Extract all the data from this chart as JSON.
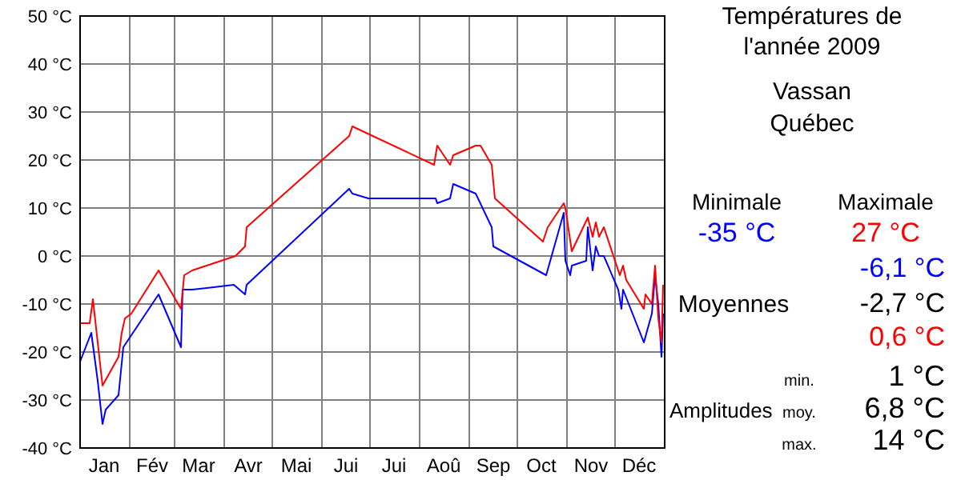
{
  "chart_data": {
    "type": "line",
    "title": "Températures de\nl'année 2009",
    "subtitle": "Vassan\nQuébec",
    "xlim": [
      "2009-01-01",
      "2010-01-01"
    ],
    "xticks": [
      {
        "value": "2009-01-01",
        "label": null
      },
      {
        "value": "2009-01-16",
        "label": "Jan"
      },
      {
        "value": "2009-02-01",
        "label": null
      },
      {
        "value": "2009-02-15",
        "label": "Fév"
      },
      {
        "value": "2009-03-01",
        "label": null
      },
      {
        "value": "2009-03-16",
        "label": "Mar"
      },
      {
        "value": "2009-04-01",
        "label": null
      },
      {
        "value": "2009-04-16",
        "label": "Avr"
      },
      {
        "value": "2009-05-01",
        "label": null
      },
      {
        "value": "2009-05-16",
        "label": "Mai"
      },
      {
        "value": "2009-06-01",
        "label": null
      },
      {
        "value": "2009-06-16",
        "label": "Jui"
      },
      {
        "value": "2009-07-01",
        "label": null
      },
      {
        "value": "2009-07-16",
        "label": "Jui"
      },
      {
        "value": "2009-08-01",
        "label": null
      },
      {
        "value": "2009-08-16",
        "label": "Aoû"
      },
      {
        "value": "2009-09-01",
        "label": null
      },
      {
        "value": "2009-09-16",
        "label": "Sep"
      },
      {
        "value": "2009-10-01",
        "label": null
      },
      {
        "value": "2009-10-16",
        "label": "Oct"
      },
      {
        "value": "2009-11-01",
        "label": null
      },
      {
        "value": "2009-11-16",
        "label": "Nov"
      },
      {
        "value": "2009-12-01",
        "label": null
      },
      {
        "value": "2009-12-16",
        "label": "Déc"
      },
      {
        "value": "2010-01-01",
        "label": null
      }
    ],
    "ylim": [
      -40,
      50
    ],
    "yticks": [
      {
        "value": -40,
        "label": "-40 °C"
      },
      {
        "value": -30,
        "label": "-30 °C"
      },
      {
        "value": -20,
        "label": "-20 °C"
      },
      {
        "value": -10,
        "label": "-10 °C"
      },
      {
        "value": 0,
        "label": "0 °C"
      },
      {
        "value": 10,
        "label": "10 °C"
      },
      {
        "value": 20,
        "label": "20 °C"
      },
      {
        "value": 30,
        "label": "30 °C"
      },
      {
        "value": 40,
        "label": "40 °C"
      },
      {
        "value": 50,
        "label": "50 °C"
      }
    ],
    "grid": true,
    "series": [
      {
        "color": "#0000ff",
        "x": [
          "2009-01-01",
          "2009-01-08",
          "2009-01-12",
          "2009-01-15",
          "2009-01-17",
          "2009-01-25",
          "2009-01-28",
          "2009-02-19",
          "2009-03-05",
          "2009-03-06",
          "2009-03-12",
          "2009-04-07",
          "2009-04-14",
          "2009-04-15",
          "2009-06-18",
          "2009-06-20",
          "2009-06-30",
          "2009-07-15",
          "2009-08-11",
          "2009-08-12",
          "2009-08-20",
          "2009-08-22",
          "2009-09-05",
          "2009-09-15",
          "2009-09-16",
          "2009-10-19",
          "2009-10-30",
          "2009-10-31",
          "2009-11-03",
          "2009-11-04",
          "2009-11-13",
          "2009-11-14",
          "2009-11-17",
          "2009-11-19",
          "2009-11-21",
          "2009-11-24",
          "2009-12-03",
          "2009-12-05",
          "2009-12-06",
          "2009-12-19",
          "2009-12-24",
          "2009-12-26",
          "2009-12-28",
          "2009-12-30",
          "2009-12-31"
        ],
        "values": [
          -22,
          -16,
          -26,
          -35,
          -32,
          -29,
          -19,
          -8,
          -19,
          -7,
          -7,
          -6,
          -8,
          -6,
          14,
          13,
          12,
          12,
          12,
          11,
          12,
          15,
          13,
          6,
          2,
          -4,
          9,
          -1,
          -4,
          -2,
          -1,
          6,
          -3,
          2,
          0,
          0,
          -7,
          -11,
          -7,
          -18,
          -12,
          -4,
          -10,
          -21,
          -12
        ]
      },
      {
        "color": "#ff0000",
        "x": [
          "2009-01-01",
          "2009-01-07",
          "2009-01-09",
          "2009-01-10",
          "2009-01-15",
          "2009-01-25",
          "2009-01-27",
          "2009-01-29",
          "2009-02-02",
          "2009-02-19",
          "2009-03-05",
          "2009-03-07",
          "2009-03-12",
          "2009-04-08",
          "2009-04-14",
          "2009-04-15",
          "2009-06-18",
          "2009-06-20",
          "2009-08-10",
          "2009-08-12",
          "2009-08-20",
          "2009-08-22",
          "2009-09-05",
          "2009-09-08",
          "2009-09-15",
          "2009-09-17",
          "2009-10-17",
          "2009-10-20",
          "2009-10-30",
          "2009-10-31",
          "2009-11-04",
          "2009-11-14",
          "2009-11-17",
          "2009-11-19",
          "2009-11-21",
          "2009-11-24",
          "2009-11-30",
          "2009-12-04",
          "2009-12-06",
          "2009-12-08",
          "2009-12-19",
          "2009-12-20",
          "2009-12-24",
          "2009-12-26",
          "2009-12-28",
          "2009-12-30",
          "2009-12-31"
        ],
        "values": [
          -14,
          -14,
          -9,
          -12,
          -27,
          -21,
          -16,
          -13,
          -12,
          -3,
          -11,
          -4,
          -3,
          0,
          2,
          6,
          25,
          27,
          19,
          23,
          19,
          21,
          23,
          23,
          19,
          12,
          3,
          6,
          11,
          10,
          1,
          8,
          4,
          7,
          4,
          6,
          0,
          -4,
          -2,
          -5,
          -11,
          -8,
          -10,
          -2,
          -13,
          -18,
          -6
        ]
      }
    ],
    "annotations": [
      "Minimale",
      "Maximale",
      "-35 °C",
      "27 °C",
      "Moyennes",
      "-6,1 °C",
      "-2,7 °C",
      "0,6 °C",
      "Amplitudes",
      "min.",
      "1 °C",
      "moy.",
      "6,8 °C",
      "max.",
      "14 °C"
    ]
  }
}
